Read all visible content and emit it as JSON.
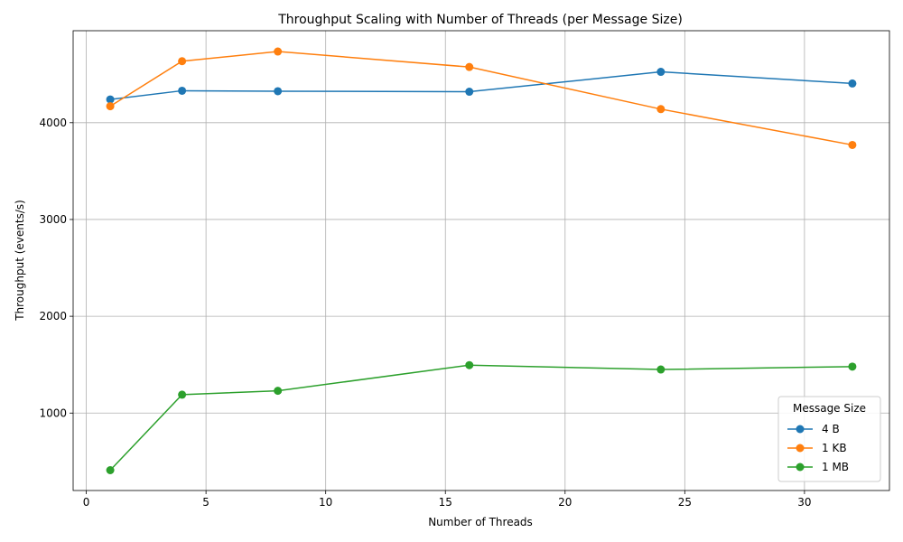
{
  "chart_data": {
    "type": "line",
    "title": "Throughput Scaling with Number of Threads (per Message Size)",
    "xlabel": "Number of Threads",
    "ylabel": "Throughput (events/s)",
    "xlim": [
      -0.55,
      33.55
    ],
    "ylim": [
      200,
      4950
    ],
    "xticks": [
      0,
      5,
      10,
      15,
      20,
      25,
      30
    ],
    "yticks": [
      1000,
      2000,
      3000,
      4000
    ],
    "grid": true,
    "legend": {
      "title": "Message Size",
      "position": "bottom-right"
    },
    "x": [
      1,
      4,
      8,
      16,
      24,
      32
    ],
    "series": [
      {
        "name": "4 B",
        "color": "#1f77b4",
        "values": [
          4240,
          4330,
          4325,
          4320,
          4525,
          4405
        ]
      },
      {
        "name": "1 KB",
        "color": "#ff7f0e",
        "values": [
          4170,
          4635,
          4735,
          4575,
          4140,
          3770
        ]
      },
      {
        "name": "1 MB",
        "color": "#2ca02c",
        "values": [
          410,
          1190,
          1230,
          1495,
          1450,
          1480
        ]
      }
    ]
  }
}
